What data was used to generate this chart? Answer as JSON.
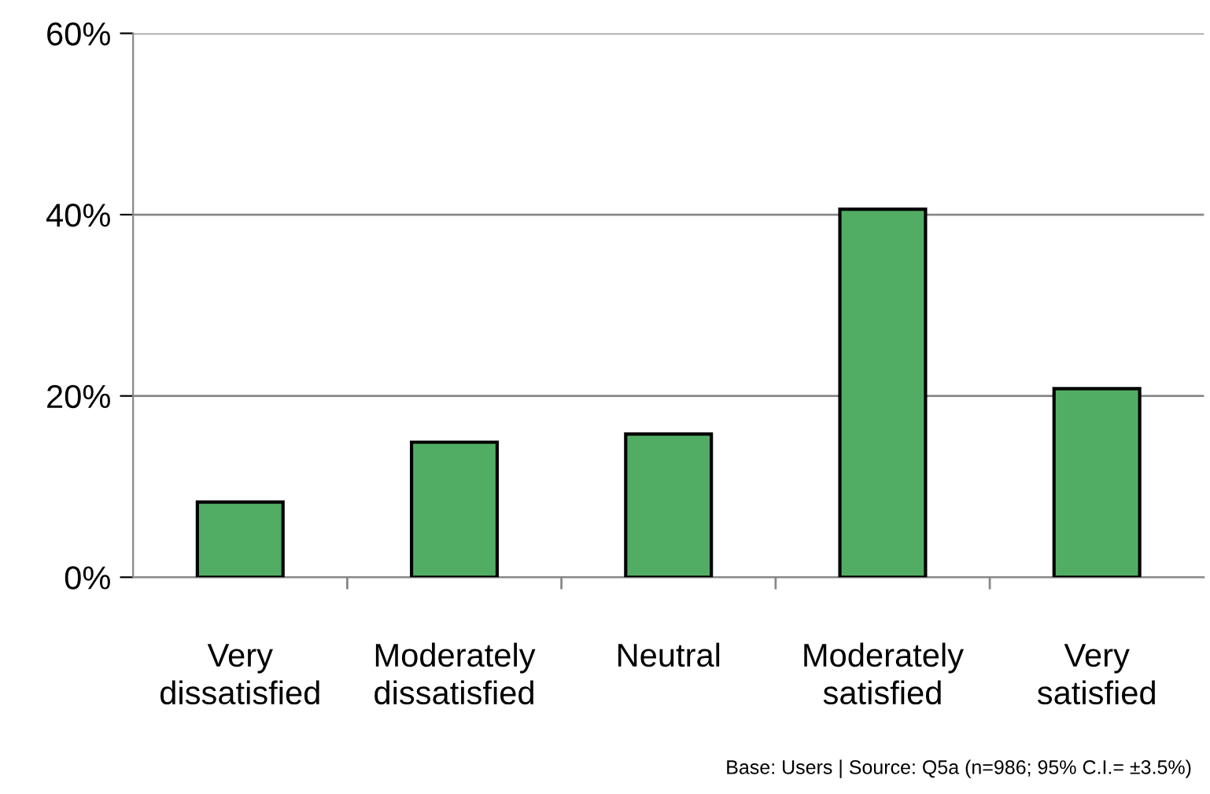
{
  "chart_data": {
    "type": "bar",
    "categories": [
      "Very\ndissatisfied",
      "Moderately\ndissatisfied",
      "Neutral",
      "Moderately\nsatisfied",
      "Very\nsatisfied"
    ],
    "values": [
      8.3,
      14.9,
      15.8,
      40.6,
      20.8
    ],
    "color": "#52ad64",
    "ylim": [
      0,
      60
    ],
    "yticks": [
      {
        "value": 0,
        "label": "0%"
      },
      {
        "value": 20,
        "label": "20%"
      },
      {
        "value": 40,
        "label": "40%"
      },
      {
        "value": 60,
        "label": "60%"
      }
    ],
    "grid": "y",
    "annotations": [
      "Base: Users | Source: Q5a (n=986; 95% C.I.= ±3.5%)"
    ]
  }
}
